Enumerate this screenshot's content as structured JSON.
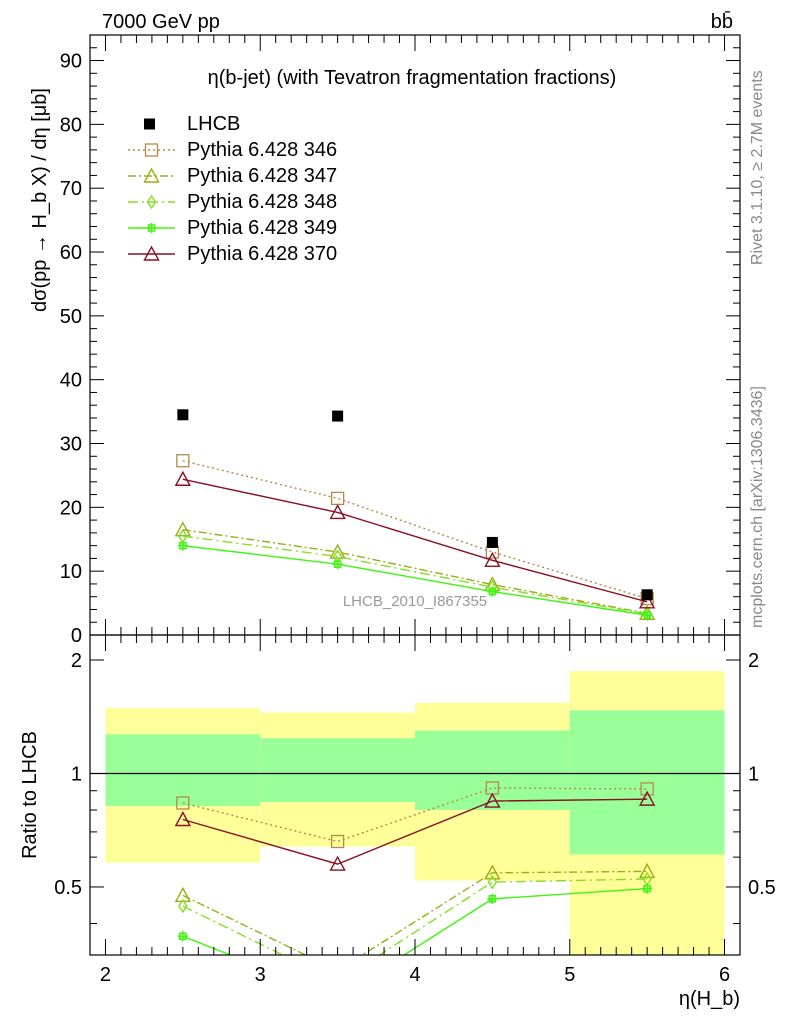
{
  "header": {
    "energy_label": "7000 GeV pp",
    "process_label": "bb̄",
    "watermark": "LHCB_2010_I867355"
  },
  "side_text": {
    "rivet": "Rivet 3.1.10, ≥ 2.7M events",
    "mcplots": "mcplots.cern.ch [arXiv:1306.3436]"
  },
  "chart_data": [
    {
      "type": "line",
      "title": "η(b-jet) (with Tevatron fragmentation fractions)",
      "xlabel": "η(H_b)",
      "ylabel": "dσ(pp → H_b X) / dη [μb]",
      "xlim": [
        1.9,
        6.1
      ],
      "ylim": [
        0,
        94
      ],
      "yticks": [
        0,
        10,
        20,
        30,
        40,
        50,
        60,
        70,
        80,
        90
      ],
      "legend_position": "top-left",
      "data": {
        "name": "LHCB",
        "x": [
          2.5,
          3.5,
          4.5,
          5.5
        ],
        "y": [
          34.5,
          34.3,
          14.5,
          6.3
        ]
      },
      "series": [
        {
          "name": "Pythia 6.428 346",
          "color": "#b5884b",
          "marker": "square",
          "dash": "2,3",
          "x": [
            2.5,
            3.5,
            4.5,
            5.5
          ],
          "y": [
            27.3,
            21.4,
            13.0,
            5.7
          ]
        },
        {
          "name": "Pythia 6.428 347",
          "color": "#9aae16",
          "marker": "triangle",
          "dash": "8,3,2,3",
          "x": [
            2.5,
            3.5,
            4.5,
            5.5
          ],
          "y": [
            16.5,
            13.0,
            7.9,
            3.4
          ]
        },
        {
          "name": "Pythia 6.428 348",
          "color": "#84e021",
          "marker": "diamond",
          "dash": "10,4,2,4",
          "x": [
            2.5,
            3.5,
            4.5,
            5.5
          ],
          "y": [
            15.5,
            12.3,
            7.5,
            3.3
          ]
        },
        {
          "name": "Pythia 6.428 349",
          "color": "#3ef60f",
          "marker": "cross",
          "dash": "",
          "x": [
            2.5,
            3.5,
            4.5,
            5.5
          ],
          "y": [
            14.0,
            11.1,
            6.8,
            3.1
          ]
        },
        {
          "name": "Pythia 6.428 370",
          "color": "#8b1023",
          "marker": "triangle",
          "dash": "",
          "x": [
            2.5,
            3.5,
            4.5,
            5.5
          ],
          "y": [
            24.4,
            19.2,
            11.7,
            5.2
          ]
        }
      ]
    },
    {
      "type": "line",
      "ylabel": "Ratio to LHCB",
      "xlabel": "η(H_b)",
      "xlim": [
        1.9,
        6.1
      ],
      "ylim": [
        0.33,
        2.33
      ],
      "ylog": true,
      "xticks": [
        2,
        3,
        4,
        5,
        6
      ],
      "yticks": [
        0.5,
        1,
        2
      ],
      "reference_line": 1,
      "bands": [
        {
          "xlow": 2,
          "xhigh": 3,
          "yellow": [
            0.58,
            1.49
          ],
          "green": [
            0.82,
            1.27
          ]
        },
        {
          "xlow": 3,
          "xhigh": 4,
          "yellow": [
            0.64,
            1.45
          ],
          "green": [
            0.84,
            1.24
          ]
        },
        {
          "xlow": 4,
          "xhigh": 5,
          "yellow": [
            0.52,
            1.54
          ],
          "green": [
            0.8,
            1.3
          ]
        },
        {
          "xlow": 5,
          "xhigh": 6,
          "yellow": [
            0.33,
            1.87
          ],
          "green": [
            0.61,
            1.47
          ]
        }
      ],
      "series": [
        {
          "name": "Pythia 6.428 346",
          "x": [
            2.5,
            3.5,
            4.5,
            5.5
          ],
          "y": [
            0.835,
            0.66,
            0.915,
            0.91
          ]
        },
        {
          "name": "Pythia 6.428 347",
          "x": [
            2.5,
            3.5,
            4.5,
            5.5
          ],
          "y": [
            0.475,
            0.3,
            0.545,
            0.55
          ]
        },
        {
          "name": "Pythia 6.428 348",
          "x": [
            2.5,
            3.5,
            4.5,
            5.5
          ],
          "y": [
            0.445,
            0.28,
            0.515,
            0.525
          ]
        },
        {
          "name": "Pythia 6.428 349",
          "x": [
            2.5,
            3.5,
            4.5,
            5.5
          ],
          "y": [
            0.37,
            0.255,
            0.465,
            0.495
          ]
        },
        {
          "name": "Pythia 6.428 370",
          "x": [
            2.5,
            3.5,
            4.5,
            5.5
          ],
          "y": [
            0.755,
            0.575,
            0.845,
            0.855
          ]
        }
      ]
    }
  ]
}
